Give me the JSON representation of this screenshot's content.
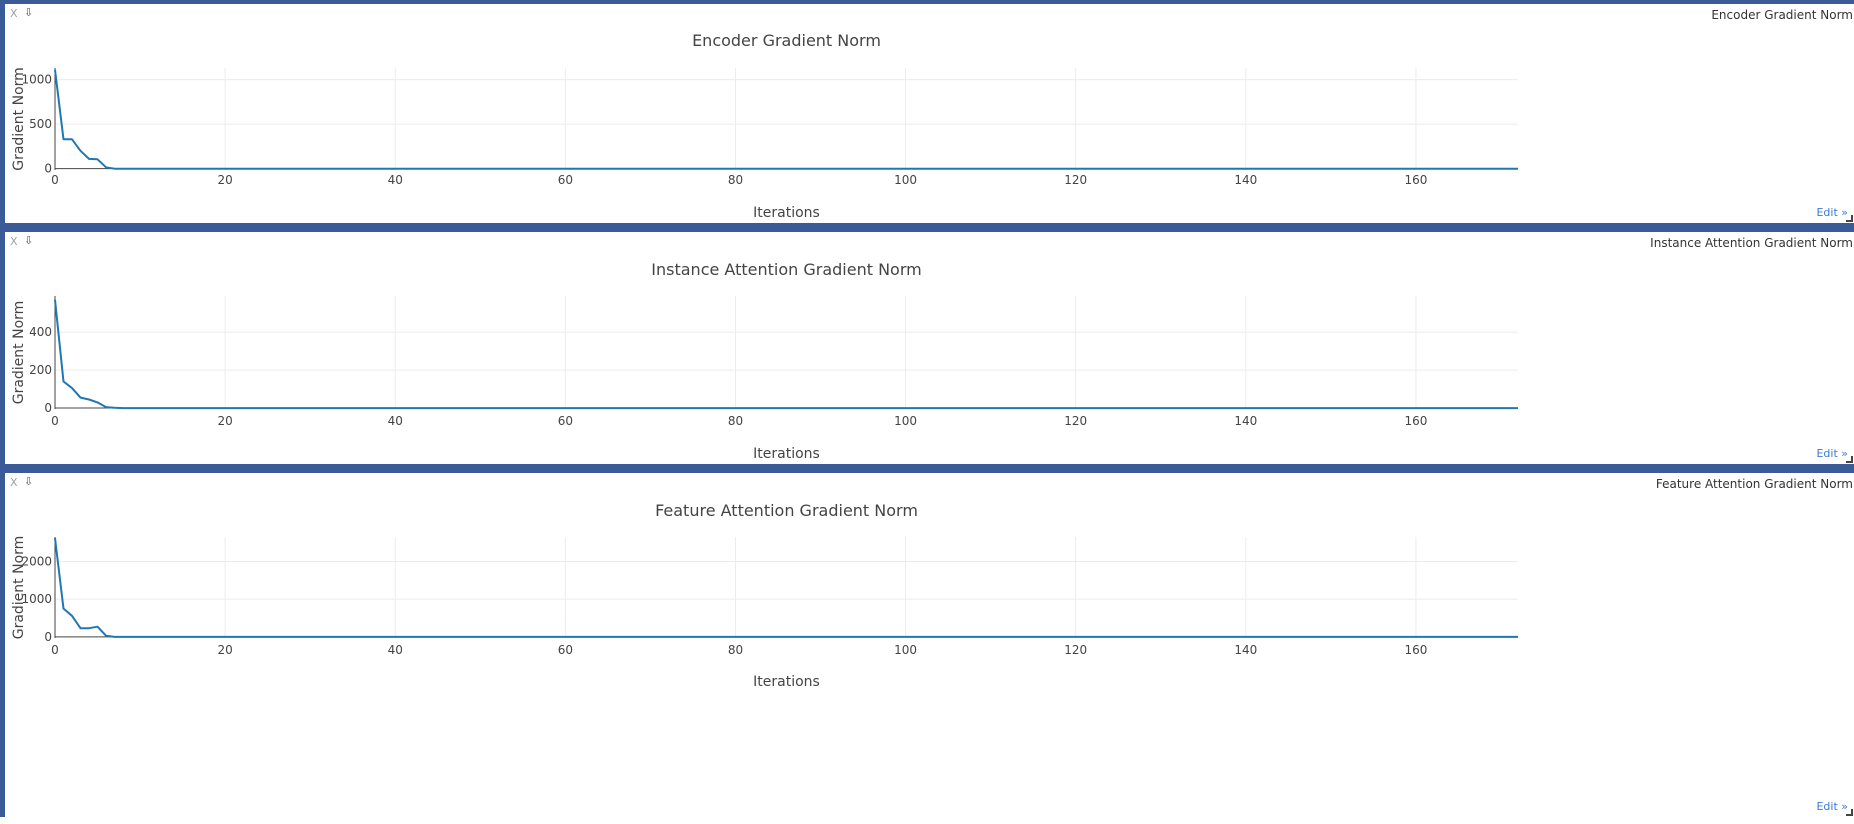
{
  "panels": [
    {
      "pane_label": "Encoder Gradient Norm",
      "close_label": "X",
      "download_label": "⇩",
      "edit_label": "Edit »",
      "chart_data": {
        "type": "line",
        "title": "Encoder Gradient Norm",
        "xlabel": "Iterations",
        "ylabel": "Gradient Norm",
        "xlim": [
          0,
          172
        ],
        "ylim": [
          -15,
          1130
        ],
        "xticks": [
          0,
          20,
          40,
          60,
          80,
          100,
          120,
          140,
          160
        ],
        "yticks": [
          0,
          500,
          1000
        ],
        "grid": true,
        "series_color": "#1f77b4",
        "series": [
          {
            "x": [
              0,
              1,
              2,
              3,
              4,
              5,
              6,
              7,
              8,
              172
            ],
            "y": [
              1110,
              330,
              330,
              200,
              110,
              105,
              15,
              0,
              0,
              0
            ]
          }
        ]
      }
    },
    {
      "pane_label": "Instance Attention Gradient Norm",
      "close_label": "X",
      "download_label": "⇩",
      "edit_label": "Edit »",
      "chart_data": {
        "type": "line",
        "title": "Instance Attention Gradient Norm",
        "xlabel": "Iterations",
        "ylabel": "Gradient Norm",
        "xlim": [
          0,
          172
        ],
        "ylim": [
          -5,
          590
        ],
        "xticks": [
          0,
          20,
          40,
          60,
          80,
          100,
          120,
          140,
          160
        ],
        "yticks": [
          0,
          200,
          400
        ],
        "grid": true,
        "series_color": "#1f77b4",
        "series": [
          {
            "x": [
              0,
              1,
              2,
              3,
              4,
              5,
              6,
              7,
              8,
              172
            ],
            "y": [
              570,
              140,
              105,
              55,
              45,
              30,
              5,
              2,
              0,
              0
            ]
          }
        ]
      }
    },
    {
      "pane_label": "Feature Attention Gradient Norm",
      "close_label": "X",
      "download_label": "⇩",
      "edit_label": "Edit »",
      "chart_data": {
        "type": "line",
        "title": "Feature Attention Gradient Norm",
        "xlabel": "Iterations",
        "ylabel": "Gradient Norm",
        "xlim": [
          0,
          172
        ],
        "ylim": [
          -30,
          2650
        ],
        "xticks": [
          0,
          20,
          40,
          60,
          80,
          100,
          120,
          140,
          160
        ],
        "yticks": [
          0,
          1000,
          2000
        ],
        "grid": true,
        "series_color": "#1f77b4",
        "series": [
          {
            "x": [
              0,
              1,
              2,
              3,
              4,
              5,
              6,
              7,
              8,
              172
            ],
            "y": [
              2620,
              750,
              560,
              230,
              230,
              270,
              30,
              0,
              0,
              0
            ]
          }
        ]
      }
    }
  ]
}
